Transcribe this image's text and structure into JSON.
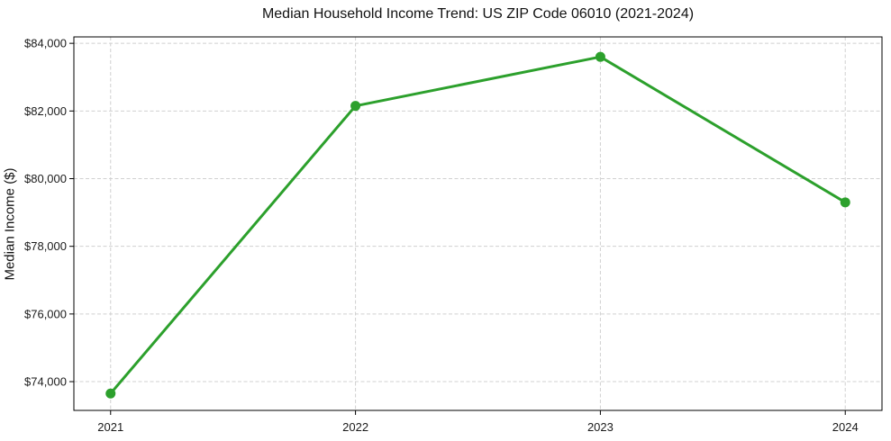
{
  "chart_data": {
    "type": "line",
    "title": "Median Household Income Trend: US ZIP Code 06010 (2021-2024)",
    "xlabel": "",
    "ylabel": "Median Income ($)",
    "x": [
      2021,
      2022,
      2023,
      2024
    ],
    "values": [
      73650,
      82150,
      83600,
      79300
    ],
    "xtick_labels": [
      "2021",
      "2022",
      "2023",
      "2024"
    ],
    "yticks": [
      74000,
      76000,
      78000,
      80000,
      82000,
      84000
    ],
    "ytick_labels": [
      "$74,000",
      "$76,000",
      "$78,000",
      "$80,000",
      "$82,000",
      "$84,000"
    ],
    "xlim": [
      2020.85,
      2024.15
    ],
    "ylim": [
      73150,
      84190
    ],
    "grid": true,
    "grid_style": "dashed",
    "legend": "none",
    "marker": "circle",
    "colors": {
      "line": "#2ca02c",
      "marker": "#2ca02c",
      "grid": "#d0d0d0",
      "spine": "#000000",
      "text": "#1a1a1a",
      "background": "#ffffff"
    }
  }
}
